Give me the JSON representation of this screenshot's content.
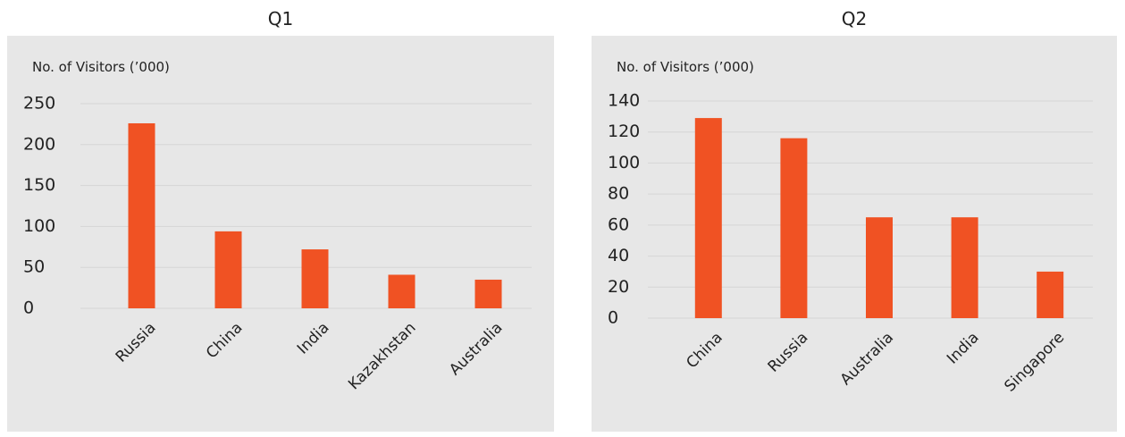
{
  "chart_data": [
    {
      "type": "bar",
      "title": "Q1",
      "y_label": "No. of Visitors (’000)",
      "categories": [
        "Russia",
        "China",
        "India",
        "Kazakhstan",
        "Australia"
      ],
      "values": [
        226,
        94,
        72,
        41,
        35
      ],
      "color": "#f05223",
      "ylim": [
        0,
        250
      ],
      "yticks": [
        0,
        50,
        100,
        150,
        200,
        250
      ],
      "grid": true
    },
    {
      "type": "bar",
      "title": "Q2",
      "y_label": "No. of Visitors (’000)",
      "categories": [
        "China",
        "Russia",
        "Australia",
        "India",
        "Singapore"
      ],
      "values": [
        129,
        116,
        65,
        65,
        30
      ],
      "color": "#f05223",
      "ylim": [
        0,
        140
      ],
      "yticks": [
        0,
        20,
        40,
        60,
        80,
        100,
        120,
        140
      ],
      "grid": true
    }
  ]
}
